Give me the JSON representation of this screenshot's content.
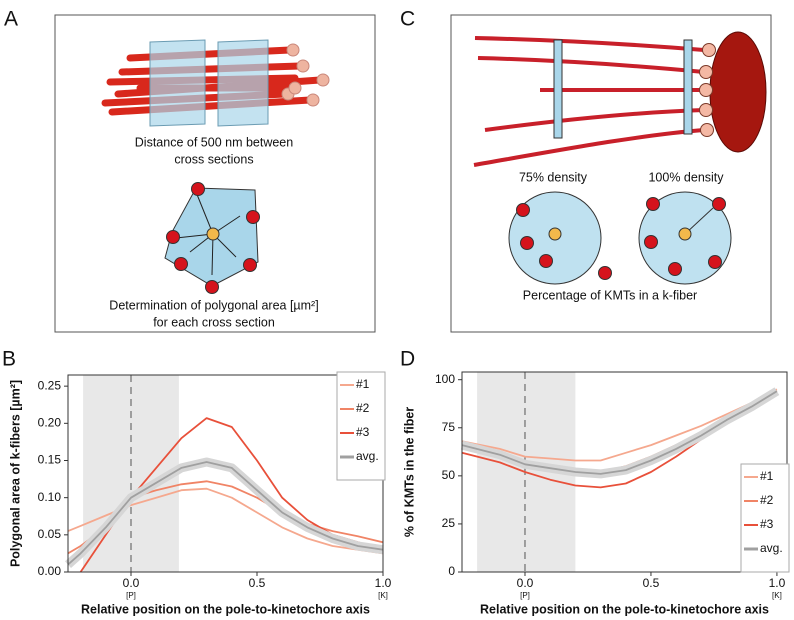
{
  "panel_labels": [
    "A",
    "B",
    "C",
    "D"
  ],
  "diagrams": {
    "a": {
      "caption_top": [
        "Distance of 500 nm between",
        "cross sections"
      ],
      "caption_bottom": [
        "Determination of polygonal area [µm²]",
        "for each cross section"
      ]
    },
    "c": {
      "density_labels": [
        "75% density",
        "100% density"
      ],
      "caption": "Percentage of KMTs in a k-fiber"
    }
  },
  "chart_data": [
    {
      "type": "line",
      "xlabel": "Relative position on the pole-to-kinetochore axis",
      "ylabel": "Polygonal area of k-fibers [µm²]",
      "x": [
        -0.25,
        -0.2,
        -0.1,
        0,
        0.1,
        0.2,
        0.3,
        0.4,
        0.5,
        0.6,
        0.7,
        0.8,
        0.9,
        1.0
      ],
      "series": [
        {
          "name": "#1",
          "color": "#f5a88e",
          "values": [
            0.055,
            0.062,
            0.076,
            0.09,
            0.1,
            0.11,
            0.112,
            0.1,
            0.08,
            0.06,
            0.045,
            0.035,
            0.03,
            0.025
          ]
        },
        {
          "name": "#2",
          "color": "#f08466",
          "values": [
            0.025,
            0.035,
            0.06,
            0.1,
            0.11,
            0.118,
            0.122,
            0.115,
            0.1,
            0.08,
            0.065,
            0.055,
            0.048,
            0.04
          ]
        },
        {
          "name": "#3",
          "color": "#e8503a",
          "values": [
            null,
            0.0,
            0.05,
            0.1,
            0.14,
            0.18,
            0.207,
            0.195,
            0.15,
            0.1,
            0.07,
            0.05,
            0.04,
            0.03
          ]
        },
        {
          "name": "avg.",
          "color": "#a0a0a0",
          "values": [
            0.01,
            0.025,
            0.06,
            0.1,
            0.12,
            0.14,
            0.148,
            0.14,
            0.11,
            0.08,
            0.06,
            0.045,
            0.035,
            0.03
          ]
        }
      ],
      "xlim": [
        -0.25,
        1.0
      ],
      "ylim": [
        0,
        0.265
      ],
      "xticks": [
        {
          "value": 0,
          "label": "0.0"
        },
        0.5,
        {
          "value": 1,
          "label": "1.0"
        }
      ],
      "xtick_sublabels": [
        {
          "value": 0,
          "label": "[P]"
        },
        {
          "value": 1,
          "label": "[K]"
        }
      ],
      "yticks": [
        {
          "value": 0,
          "label": "0.00"
        },
        0.05,
        {
          "value": 0.1,
          "label": "0.10"
        },
        0.15,
        {
          "value": 0.2,
          "label": "0.20"
        },
        0.25
      ],
      "shaded_region": [
        -0.19,
        0.19
      ],
      "vline": 0,
      "legend": "top-right"
    },
    {
      "type": "line",
      "xlabel": "Relative position on the pole-to-kinetochore axis",
      "ylabel": "% of KMTs in the fiber",
      "x": [
        -0.25,
        -0.1,
        0,
        0.1,
        0.2,
        0.3,
        0.4,
        0.5,
        0.6,
        0.7,
        0.8,
        0.9,
        1.0
      ],
      "series": [
        {
          "name": "#1",
          "color": "#f5a88e",
          "values": [
            68,
            64,
            60,
            59,
            58,
            58,
            62,
            66,
            71,
            76,
            82,
            88,
            95
          ]
        },
        {
          "name": "#2",
          "color": "#f08466",
          "values": [
            65,
            61,
            57,
            55,
            53,
            52,
            55,
            60,
            66,
            72,
            79,
            86,
            94
          ]
        },
        {
          "name": "#3",
          "color": "#e8503a",
          "values": [
            62,
            57,
            52,
            48,
            45,
            44,
            46,
            52,
            60,
            69,
            78,
            86,
            93
          ]
        },
        {
          "name": "avg.",
          "color": "#a0a0a0",
          "values": [
            66,
            61,
            56,
            54,
            52,
            51,
            53,
            58,
            64,
            71,
            79,
            86,
            94
          ]
        }
      ],
      "xlim": [
        -0.25,
        1.04
      ],
      "ylim": [
        0,
        104
      ],
      "xticks": [
        {
          "value": 0,
          "label": "0.0"
        },
        0.5,
        {
          "value": 1,
          "label": "1.0"
        }
      ],
      "xtick_sublabels": [
        {
          "value": 0,
          "label": "[P]"
        },
        {
          "value": 1,
          "label": "[K]"
        }
      ],
      "yticks": [
        0,
        25,
        50,
        75,
        100
      ],
      "shaded_region": [
        -0.19,
        0.2
      ],
      "vline": 0,
      "legend": "bottom-right"
    }
  ]
}
